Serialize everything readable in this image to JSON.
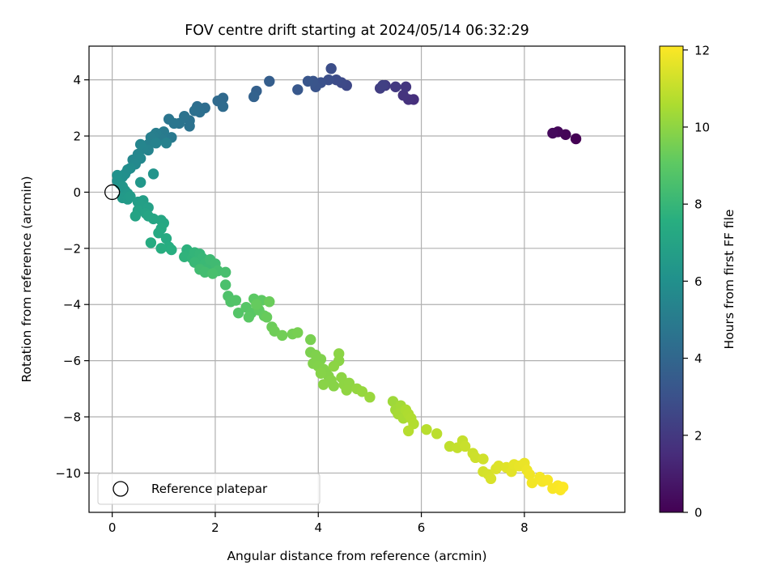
{
  "chart_data": {
    "type": "scatter",
    "title": "FOV centre drift starting at 2024/05/14 06:32:29",
    "xlabel": "Angular distance from reference (arcmin)",
    "ylabel": "Rotation from reference (arcmin)",
    "xlim": [
      -0.45,
      9.95
    ],
    "ylim": [
      -11.4,
      5.2
    ],
    "xticks": [
      0,
      2,
      4,
      6,
      8
    ],
    "yticks": [
      -10,
      -8,
      -6,
      -4,
      -2,
      0,
      2,
      4
    ],
    "xtick_labels": [
      "0",
      "2",
      "4",
      "6",
      "8"
    ],
    "ytick_labels": [
      "−10",
      "−8",
      "−6",
      "−4",
      "−2",
      "0",
      "2",
      "4"
    ],
    "grid": true,
    "colormap": "viridis",
    "colorbar": {
      "label": "Hours from first FF file",
      "range": [
        0,
        12.1
      ],
      "ticks": [
        0,
        2,
        4,
        6,
        8,
        10,
        12
      ],
      "tick_labels": [
        "0",
        "2",
        "4",
        "6",
        "8",
        "10",
        "12"
      ]
    },
    "legend": {
      "position": "lower-left",
      "entries": [
        {
          "label": "Reference platepar",
          "marker": "open-circle"
        }
      ]
    },
    "reference_point": {
      "x": 0,
      "y": 0
    },
    "series": [
      {
        "color_by": "hours",
        "points": [
          [
            9.0,
            1.9,
            0.0
          ],
          [
            8.8,
            2.05,
            0.1
          ],
          [
            8.65,
            2.15,
            0.2
          ],
          [
            8.55,
            2.1,
            0.3
          ],
          [
            5.85,
            3.3,
            1.6
          ],
          [
            5.75,
            3.3,
            1.7
          ],
          [
            5.65,
            3.45,
            1.8
          ],
          [
            5.7,
            3.75,
            1.9
          ],
          [
            5.5,
            3.75,
            2.0
          ],
          [
            5.3,
            3.8,
            2.1
          ],
          [
            5.2,
            3.7,
            2.2
          ],
          [
            5.25,
            3.8,
            2.3
          ],
          [
            4.55,
            3.8,
            2.6
          ],
          [
            4.45,
            3.9,
            2.7
          ],
          [
            4.35,
            4.0,
            2.8
          ],
          [
            4.25,
            4.4,
            2.85
          ],
          [
            4.2,
            4.0,
            2.9
          ],
          [
            4.05,
            3.9,
            3.0
          ],
          [
            3.95,
            3.75,
            3.1
          ],
          [
            3.9,
            3.95,
            3.15
          ],
          [
            3.8,
            3.95,
            3.2
          ],
          [
            3.6,
            3.65,
            3.3
          ],
          [
            3.05,
            3.95,
            3.6
          ],
          [
            2.8,
            3.6,
            3.7
          ],
          [
            2.75,
            3.4,
            3.8
          ],
          [
            2.15,
            3.35,
            4.1
          ],
          [
            2.05,
            3.25,
            4.15
          ],
          [
            2.15,
            3.05,
            4.2
          ],
          [
            1.8,
            3.0,
            4.3
          ],
          [
            1.65,
            3.05,
            4.35
          ],
          [
            1.7,
            2.85,
            4.4
          ],
          [
            1.6,
            2.9,
            4.45
          ],
          [
            1.5,
            2.55,
            4.5
          ],
          [
            1.5,
            2.35,
            4.55
          ],
          [
            1.4,
            2.7,
            4.6
          ],
          [
            1.3,
            2.45,
            4.65
          ],
          [
            1.1,
            2.6,
            4.7
          ],
          [
            1.2,
            2.45,
            4.75
          ],
          [
            1.15,
            1.95,
            4.9
          ],
          [
            1.0,
            2.15,
            4.95
          ],
          [
            0.95,
            1.9,
            5.0
          ],
          [
            0.85,
            2.1,
            5.05
          ],
          [
            0.8,
            2.0,
            5.1
          ],
          [
            0.75,
            1.95,
            5.15
          ],
          [
            0.7,
            1.7,
            5.2
          ],
          [
            1.05,
            1.75,
            5.25
          ],
          [
            0.85,
            1.75,
            5.3
          ],
          [
            0.7,
            1.5,
            5.35
          ],
          [
            0.6,
            1.55,
            5.4
          ],
          [
            0.55,
            1.7,
            5.45
          ],
          [
            0.5,
            1.35,
            5.5
          ],
          [
            0.4,
            1.15,
            5.55
          ],
          [
            0.55,
            1.2,
            5.6
          ],
          [
            0.45,
            1.0,
            5.65
          ],
          [
            0.35,
            0.85,
            5.8
          ],
          [
            0.3,
            0.8,
            5.85
          ],
          [
            0.25,
            0.65,
            5.9
          ],
          [
            0.2,
            0.55,
            5.95
          ],
          [
            0.15,
            0.55,
            6.0
          ],
          [
            0.1,
            0.6,
            6.05
          ],
          [
            0.1,
            0.4,
            6.1
          ],
          [
            0.15,
            0.3,
            6.15
          ],
          [
            0.8,
            0.65,
            6.2
          ],
          [
            0.2,
            0.2,
            6.25
          ],
          [
            0.25,
            0.05,
            6.3
          ],
          [
            0.55,
            0.35,
            6.35
          ],
          [
            0.3,
            -0.05,
            6.4
          ],
          [
            0.2,
            -0.2,
            6.45
          ],
          [
            0.3,
            -0.25,
            6.5
          ],
          [
            0.35,
            -0.15,
            6.55
          ],
          [
            0.5,
            -0.35,
            6.7
          ],
          [
            0.6,
            -0.3,
            6.75
          ],
          [
            0.55,
            -0.45,
            6.8
          ],
          [
            0.7,
            -0.55,
            6.85
          ],
          [
            0.5,
            -0.65,
            6.9
          ],
          [
            0.65,
            -0.75,
            6.95
          ],
          [
            0.45,
            -0.85,
            7.0
          ],
          [
            0.7,
            -0.85,
            7.05
          ],
          [
            0.8,
            -0.95,
            7.1
          ],
          [
            0.95,
            -1.0,
            7.15
          ],
          [
            1.0,
            -1.1,
            7.2
          ],
          [
            0.95,
            -1.3,
            7.25
          ],
          [
            0.9,
            -1.45,
            7.3
          ],
          [
            1.05,
            -1.65,
            7.35
          ],
          [
            0.75,
            -1.8,
            7.4
          ],
          [
            1.1,
            -1.95,
            7.45
          ],
          [
            0.95,
            -2.0,
            7.5
          ],
          [
            1.15,
            -2.05,
            7.55
          ],
          [
            1.45,
            -2.05,
            7.7
          ],
          [
            1.5,
            -2.2,
            7.75
          ],
          [
            1.4,
            -2.3,
            7.8
          ],
          [
            1.55,
            -2.35,
            7.85
          ],
          [
            1.6,
            -2.15,
            7.9
          ],
          [
            1.7,
            -2.2,
            7.95
          ],
          [
            1.75,
            -2.35,
            8.0
          ],
          [
            1.6,
            -2.5,
            8.05
          ],
          [
            1.8,
            -2.55,
            8.1
          ],
          [
            1.85,
            -2.7,
            8.15
          ],
          [
            1.9,
            -2.4,
            8.2
          ],
          [
            2.0,
            -2.55,
            8.25
          ],
          [
            1.7,
            -2.75,
            8.3
          ],
          [
            1.8,
            -2.85,
            8.35
          ],
          [
            2.05,
            -2.8,
            8.4
          ],
          [
            2.2,
            -2.85,
            8.45
          ],
          [
            1.95,
            -2.9,
            8.5
          ],
          [
            2.2,
            -3.3,
            8.55
          ],
          [
            2.25,
            -3.7,
            8.65
          ],
          [
            2.3,
            -3.9,
            8.7
          ],
          [
            2.4,
            -3.85,
            8.75
          ],
          [
            2.45,
            -4.3,
            8.8
          ],
          [
            2.6,
            -4.1,
            8.85
          ],
          [
            2.7,
            -4.3,
            8.9
          ],
          [
            2.65,
            -4.45,
            8.95
          ],
          [
            2.75,
            -3.8,
            9.0
          ],
          [
            2.9,
            -3.85,
            9.05
          ],
          [
            2.85,
            -4.2,
            9.1
          ],
          [
            2.95,
            -4.4,
            9.15
          ],
          [
            2.8,
            -4.0,
            9.2
          ],
          [
            3.0,
            -4.45,
            9.25
          ],
          [
            3.05,
            -3.9,
            9.3
          ],
          [
            3.1,
            -4.8,
            9.35
          ],
          [
            3.15,
            -4.95,
            9.4
          ],
          [
            3.3,
            -5.1,
            9.45
          ],
          [
            3.5,
            -5.05,
            9.5
          ],
          [
            3.6,
            -5.0,
            9.55
          ],
          [
            3.85,
            -5.25,
            9.6
          ],
          [
            3.85,
            -5.7,
            9.65
          ],
          [
            3.95,
            -5.8,
            9.7
          ],
          [
            4.05,
            -5.95,
            9.72
          ],
          [
            3.9,
            -6.1,
            9.74
          ],
          [
            4.0,
            -6.2,
            9.76
          ],
          [
            4.1,
            -6.3,
            9.78
          ],
          [
            4.15,
            -6.4,
            9.8
          ],
          [
            4.2,
            -6.55,
            9.82
          ],
          [
            4.05,
            -6.45,
            9.84
          ],
          [
            4.25,
            -6.7,
            9.86
          ],
          [
            4.3,
            -6.9,
            9.88
          ],
          [
            4.1,
            -6.85,
            9.9
          ],
          [
            4.4,
            -6.0,
            9.92
          ],
          [
            4.4,
            -5.75,
            9.94
          ],
          [
            4.3,
            -6.2,
            9.96
          ],
          [
            4.45,
            -6.6,
            9.98
          ],
          [
            4.5,
            -6.85,
            10.0
          ],
          [
            4.6,
            -6.8,
            10.02
          ],
          [
            4.55,
            -7.05,
            10.04
          ],
          [
            4.75,
            -7.0,
            10.1
          ],
          [
            4.85,
            -7.1,
            10.15
          ],
          [
            5.0,
            -7.3,
            10.2
          ],
          [
            5.45,
            -7.45,
            10.3
          ],
          [
            5.5,
            -7.75,
            10.35
          ],
          [
            5.6,
            -7.6,
            10.4
          ],
          [
            5.55,
            -7.9,
            10.45
          ],
          [
            5.65,
            -8.05,
            10.5
          ],
          [
            5.7,
            -7.75,
            10.55
          ],
          [
            5.75,
            -7.9,
            10.6
          ],
          [
            5.8,
            -8.05,
            10.65
          ],
          [
            5.85,
            -8.25,
            10.7
          ],
          [
            5.75,
            -8.5,
            10.75
          ],
          [
            6.1,
            -8.45,
            10.8
          ],
          [
            6.3,
            -8.6,
            10.85
          ],
          [
            6.55,
            -9.05,
            10.95
          ],
          [
            6.7,
            -9.1,
            11.0
          ],
          [
            6.8,
            -8.85,
            11.05
          ],
          [
            6.85,
            -9.05,
            11.1
          ],
          [
            7.0,
            -9.3,
            11.15
          ],
          [
            7.05,
            -9.45,
            11.2
          ],
          [
            7.2,
            -9.5,
            11.25
          ],
          [
            7.2,
            -9.95,
            11.3
          ],
          [
            7.3,
            -10.05,
            11.35
          ],
          [
            7.35,
            -10.2,
            11.4
          ],
          [
            7.45,
            -9.85,
            11.45
          ],
          [
            7.5,
            -9.75,
            11.5
          ],
          [
            7.65,
            -9.8,
            11.55
          ],
          [
            7.75,
            -9.95,
            11.6
          ],
          [
            7.8,
            -9.7,
            11.65
          ],
          [
            7.9,
            -9.75,
            11.7
          ],
          [
            8.0,
            -9.65,
            11.75
          ],
          [
            8.05,
            -9.9,
            11.8
          ],
          [
            8.1,
            -10.05,
            11.85
          ],
          [
            8.15,
            -10.35,
            11.9
          ],
          [
            8.3,
            -10.15,
            11.92
          ],
          [
            8.35,
            -10.3,
            11.95
          ],
          [
            8.45,
            -10.25,
            11.98
          ],
          [
            8.55,
            -10.55,
            12.0
          ],
          [
            8.65,
            -10.45,
            12.02
          ],
          [
            8.7,
            -10.6,
            12.05
          ],
          [
            8.75,
            -10.5,
            12.08
          ]
        ]
      }
    ]
  }
}
